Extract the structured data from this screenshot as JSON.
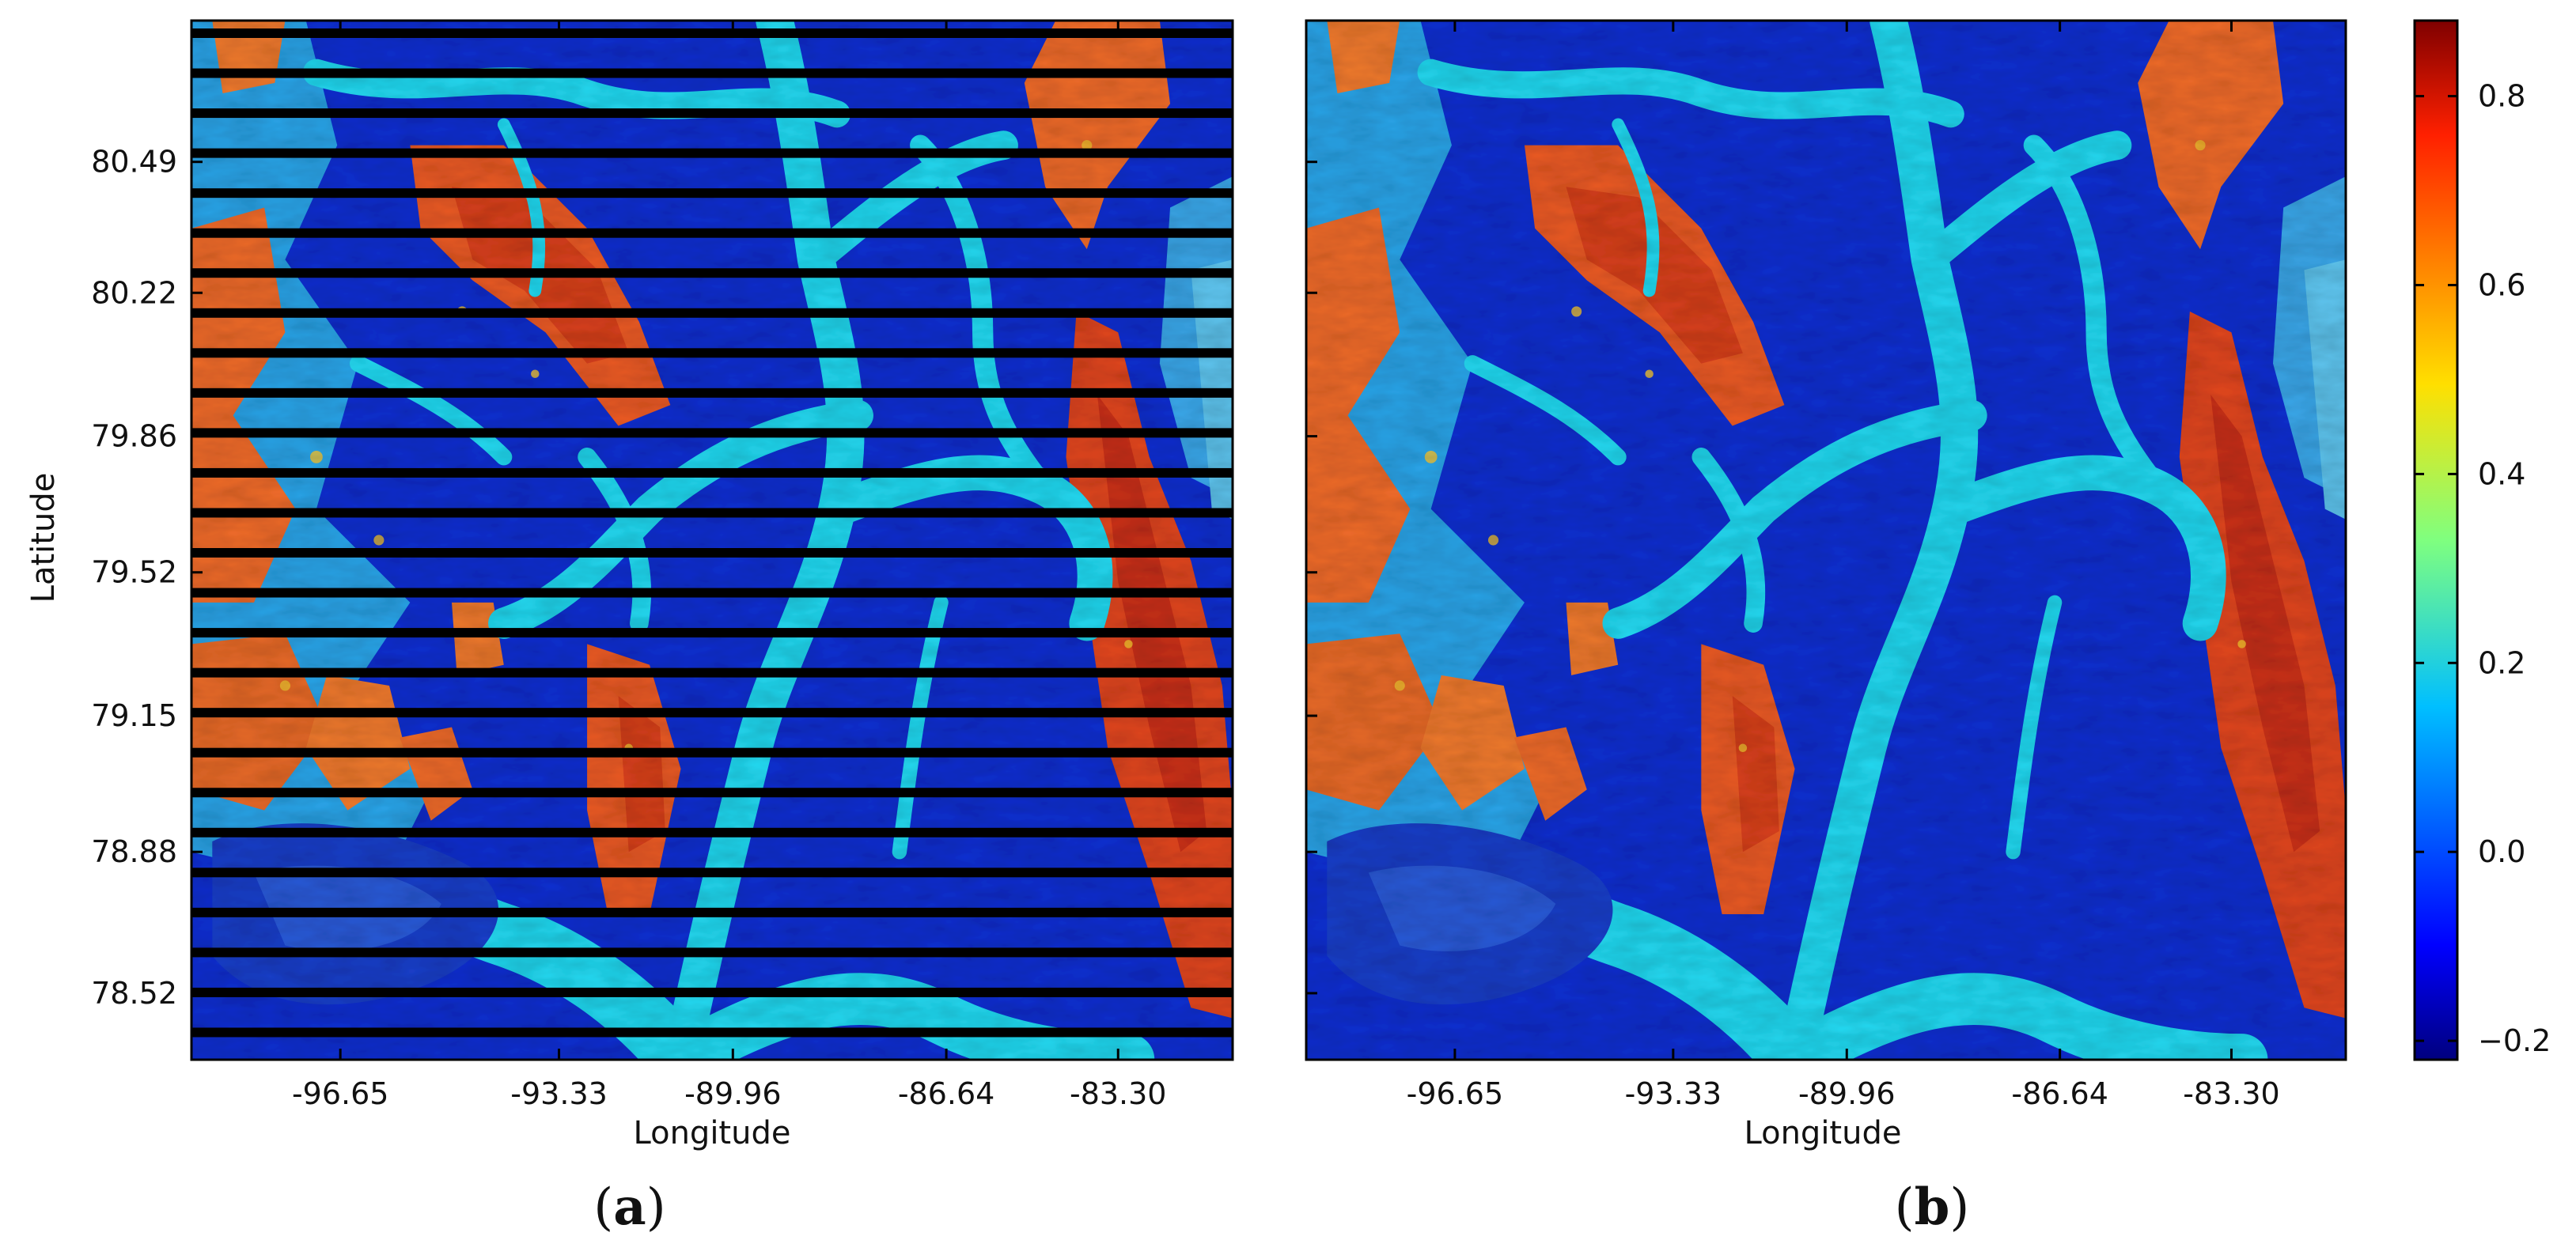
{
  "chart_data": [
    {
      "type": "heatmap",
      "panel_label": "a",
      "xlabel": "Longitude",
      "ylabel": "Latitude",
      "x_ticks": [
        "-96.65",
        "-93.33",
        "-89.96",
        "-86.64",
        "-83.30"
      ],
      "y_ticks": [
        "80.49",
        "80.22",
        "79.86",
        "79.52",
        "79.15",
        "78.88",
        "78.52"
      ],
      "scan_line_gaps": 26,
      "colorbar": false
    },
    {
      "type": "heatmap",
      "panel_label": "b",
      "xlabel": "Longitude",
      "ylabel": "",
      "x_ticks": [
        "-96.65",
        "-93.33",
        "-89.96",
        "-86.64",
        "-83.30"
      ],
      "y_ticks": [],
      "scan_line_gaps": 0,
      "colorbar": true
    }
  ],
  "colorbar": {
    "ticks": [
      "0.8",
      "0.6",
      "0.4",
      "0.2",
      "0.0",
      "−0.2"
    ],
    "tick_values": [
      0.8,
      0.6,
      0.4,
      0.2,
      0.0,
      -0.2
    ],
    "vmin": -0.22,
    "vmax": 0.88,
    "colormap": "jet"
  },
  "colors": {
    "deep_blue": "#0a1fb0",
    "cyan_channel": "#22d8f0",
    "orange_high": "#f0602a",
    "red_high": "#d8301a",
    "scan_gap": "#000000"
  }
}
